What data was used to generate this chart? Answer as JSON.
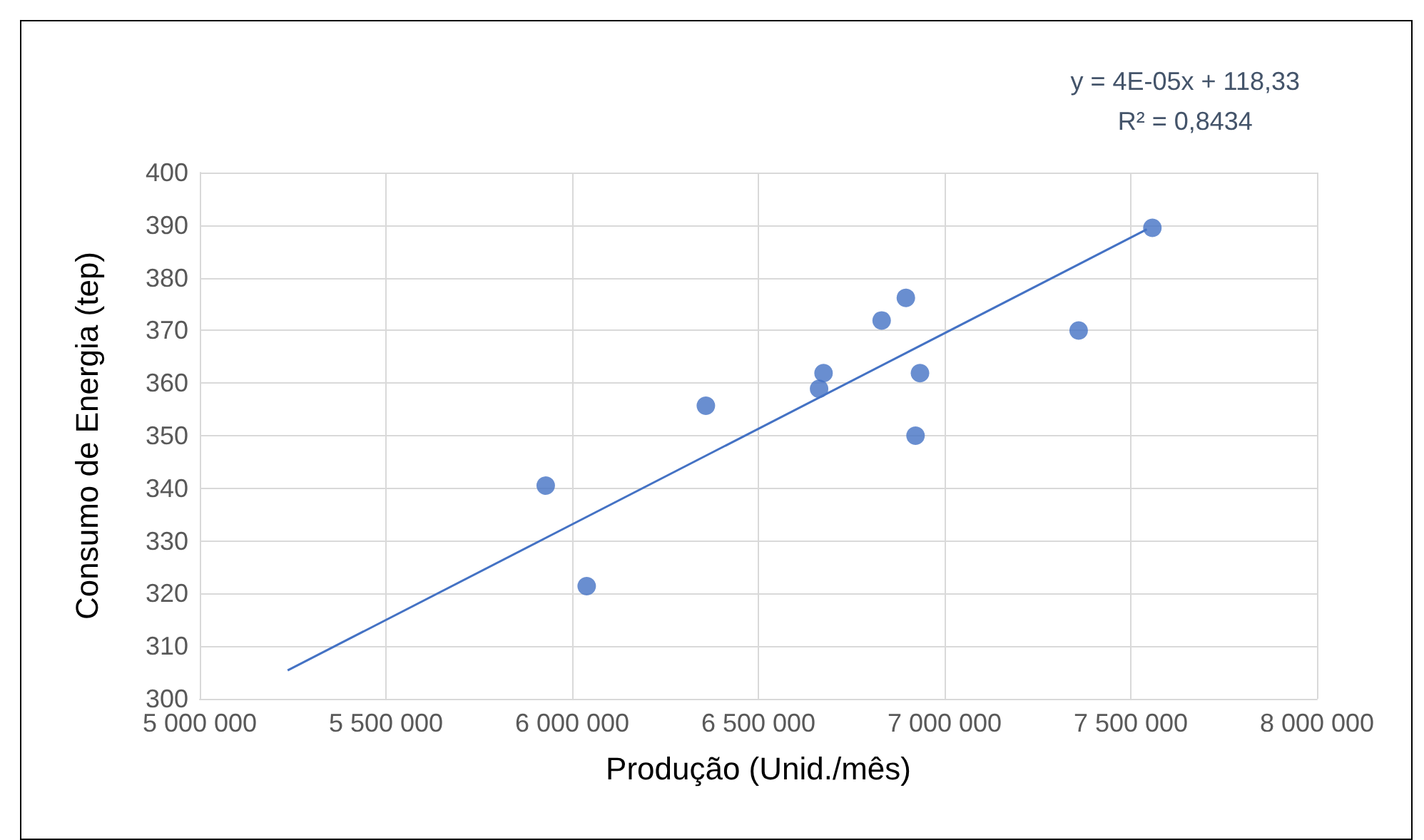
{
  "chart_data": {
    "type": "scatter",
    "xlabel": "Produção (Unid./mês)",
    "ylabel": "Consumo de Energia (tep)",
    "annotations": [
      "y = 4E-05x + 118,33",
      "R² = 0,8434"
    ],
    "series": [
      {
        "color": "#4472c4",
        "marker": "circle",
        "x": [
          5929000,
          6039000,
          6359000,
          6663000,
          6675000,
          6831000,
          6896000,
          6934000,
          6922000,
          7360000,
          7558000
        ],
        "values": [
          340.5,
          321.4,
          355.7,
          358.9,
          361.9,
          371.9,
          376.2,
          361.9,
          350,
          370,
          389.5
        ]
      },
      {
        "type": "line",
        "color": "#4472c4",
        "marker": "none",
        "x": [
          5236000,
          7543000
        ],
        "values": [
          305.4,
          389.2
        ]
      }
    ],
    "xlim": [
      5000000,
      8000000
    ],
    "xticks": [
      {
        "value": 5000000,
        "label": "5 000 000"
      },
      {
        "value": 5500000,
        "label": "5 500 000"
      },
      {
        "value": 6000000,
        "label": "6 000 000"
      },
      {
        "value": 6500000,
        "label": "6 500 000"
      },
      {
        "value": 7000000,
        "label": "7 000 000"
      },
      {
        "value": 7500000,
        "label": "7 500 000"
      },
      {
        "value": 8000000,
        "label": "8 000 000"
      }
    ],
    "ylim": [
      300,
      400
    ],
    "yticks": [
      300,
      310,
      320,
      330,
      340,
      350,
      360,
      370,
      380,
      390,
      400
    ],
    "grid": true
  }
}
